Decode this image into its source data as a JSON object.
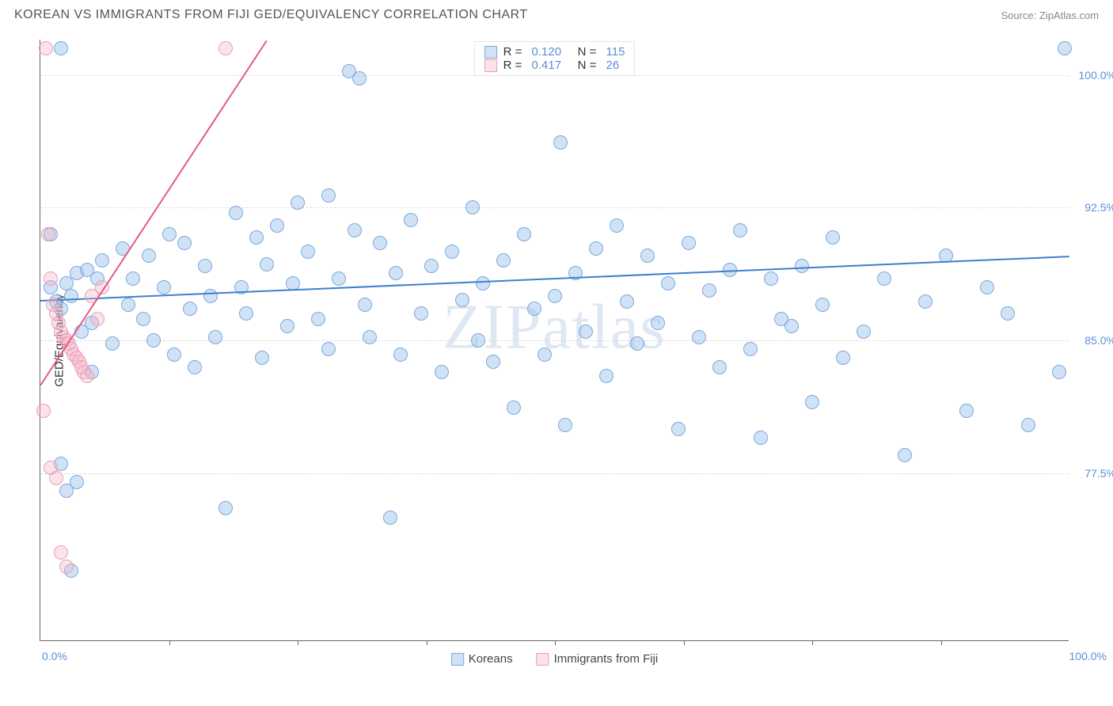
{
  "header": {
    "title": "KOREAN VS IMMIGRANTS FROM FIJI GED/EQUIVALENCY CORRELATION CHART",
    "source": "Source: ZipAtlas.com"
  },
  "watermark": "ZIPatlas",
  "chart": {
    "type": "scatter",
    "yaxis_title": "GED/Equivalency",
    "xlim": [
      0,
      100
    ],
    "ylim": [
      68,
      102
    ],
    "xaxis_left_label": "0.0%",
    "xaxis_right_label": "100.0%",
    "xtick_positions": [
      12.5,
      25,
      37.5,
      50,
      62.5,
      75,
      87.5
    ],
    "yticks": [
      {
        "value": 77.5,
        "label": "77.5%"
      },
      {
        "value": 85.0,
        "label": "85.0%"
      },
      {
        "value": 92.5,
        "label": "92.5%"
      },
      {
        "value": 100.0,
        "label": "100.0%"
      }
    ],
    "grid_color": "#dddddd",
    "background_color": "#ffffff",
    "marker_radius": 9,
    "series": [
      {
        "name": "Koreans",
        "color_fill": "rgba(150,190,235,0.45)",
        "color_border": "#7fa8d9",
        "R": "0.120",
        "N": "115",
        "regression": {
          "x1": 0,
          "y1": 87.3,
          "x2": 100,
          "y2": 89.8,
          "color": "#3f7fd0",
          "width": 2
        },
        "points": [
          [
            1,
            88
          ],
          [
            1.5,
            87.2
          ],
          [
            2,
            86.8
          ],
          [
            2.5,
            88.2
          ],
          [
            3,
            87.5
          ],
          [
            3.5,
            88.8
          ],
          [
            4,
            85.5
          ],
          [
            4.5,
            89
          ],
          [
            5,
            86
          ],
          [
            5.5,
            88.5
          ],
          [
            2,
            101.5
          ],
          [
            5,
            83.2
          ],
          [
            6,
            89.5
          ],
          [
            7,
            84.8
          ],
          [
            8,
            90.2
          ],
          [
            8.5,
            87
          ],
          [
            9,
            88.5
          ],
          [
            10,
            86.2
          ],
          [
            10.5,
            89.8
          ],
          [
            11,
            85
          ],
          [
            12,
            88
          ],
          [
            12.5,
            91
          ],
          [
            13,
            84.2
          ],
          [
            14,
            90.5
          ],
          [
            14.5,
            86.8
          ],
          [
            15,
            83.5
          ],
          [
            16,
            89.2
          ],
          [
            16.5,
            87.5
          ],
          [
            17,
            85.2
          ],
          [
            18,
            75.5
          ],
          [
            19,
            92.2
          ],
          [
            19.5,
            88
          ],
          [
            20,
            86.5
          ],
          [
            21,
            90.8
          ],
          [
            21.5,
            84
          ],
          [
            22,
            89.3
          ],
          [
            23,
            91.5
          ],
          [
            24,
            85.8
          ],
          [
            24.5,
            88.2
          ],
          [
            25,
            92.8
          ],
          [
            26,
            90
          ],
          [
            27,
            86.2
          ],
          [
            28,
            93.2
          ],
          [
            28,
            84.5
          ],
          [
            29,
            88.5
          ],
          [
            30,
            100.2
          ],
          [
            30.5,
            91.2
          ],
          [
            31,
            99.8
          ],
          [
            31.5,
            87
          ],
          [
            32,
            85.2
          ],
          [
            33,
            90.5
          ],
          [
            34,
            75
          ],
          [
            34.5,
            88.8
          ],
          [
            35,
            84.2
          ],
          [
            36,
            91.8
          ],
          [
            37,
            86.5
          ],
          [
            38,
            89.2
          ],
          [
            39,
            83.2
          ],
          [
            40,
            90
          ],
          [
            41,
            87.3
          ],
          [
            42,
            92.5
          ],
          [
            42.5,
            85
          ],
          [
            43,
            88.2
          ],
          [
            44,
            83.8
          ],
          [
            45,
            89.5
          ],
          [
            46,
            81.2
          ],
          [
            47,
            91
          ],
          [
            48,
            86.8
          ],
          [
            49,
            84.2
          ],
          [
            50,
            87.5
          ],
          [
            50.5,
            96.2
          ],
          [
            51,
            80.2
          ],
          [
            52,
            88.8
          ],
          [
            53,
            85.5
          ],
          [
            54,
            90.2
          ],
          [
            55,
            83
          ],
          [
            56,
            91.5
          ],
          [
            57,
            87.2
          ],
          [
            58,
            84.8
          ],
          [
            59,
            89.8
          ],
          [
            60,
            86
          ],
          [
            61,
            88.2
          ],
          [
            62,
            80
          ],
          [
            63,
            90.5
          ],
          [
            64,
            85.2
          ],
          [
            65,
            87.8
          ],
          [
            66,
            83.5
          ],
          [
            67,
            89
          ],
          [
            68,
            91.2
          ],
          [
            69,
            84.5
          ],
          [
            70,
            79.5
          ],
          [
            71,
            88.5
          ],
          [
            72,
            86.2
          ],
          [
            73,
            85.8
          ],
          [
            74,
            89.2
          ],
          [
            75,
            81.5
          ],
          [
            76,
            87
          ],
          [
            77,
            90.8
          ],
          [
            78,
            84
          ],
          [
            80,
            85.5
          ],
          [
            82,
            88.5
          ],
          [
            84,
            78.5
          ],
          [
            86,
            87.2
          ],
          [
            88,
            89.8
          ],
          [
            90,
            81
          ],
          [
            92,
            88
          ],
          [
            94,
            86.5
          ],
          [
            96,
            80.2
          ],
          [
            99.5,
            101.5
          ],
          [
            99,
            83.2
          ],
          [
            1,
            91
          ],
          [
            2,
            78
          ],
          [
            2.5,
            76.5
          ],
          [
            3,
            72
          ],
          [
            3.5,
            77
          ]
        ]
      },
      {
        "name": "Immigrants from Fiji",
        "color_fill": "rgba(245,175,195,0.35)",
        "color_border": "#e8a0b5",
        "R": "0.417",
        "N": "26",
        "regression": {
          "x1": 0,
          "y1": 82.5,
          "x2": 22,
          "y2": 102,
          "color": "#e55a85",
          "width": 2
        },
        "points": [
          [
            0.5,
            101.5
          ],
          [
            0.8,
            91
          ],
          [
            1,
            88.5
          ],
          [
            1.2,
            87
          ],
          [
            1.5,
            86.5
          ],
          [
            1.8,
            86
          ],
          [
            2,
            85.5
          ],
          [
            2.2,
            85.2
          ],
          [
            2.5,
            85
          ],
          [
            2.8,
            84.8
          ],
          [
            3,
            84.5
          ],
          [
            3.2,
            84.2
          ],
          [
            3.5,
            84
          ],
          [
            3.8,
            83.8
          ],
          [
            4,
            83.5
          ],
          [
            4.2,
            83.2
          ],
          [
            4.5,
            83
          ],
          [
            5,
            87.5
          ],
          [
            5.5,
            86.2
          ],
          [
            6,
            88
          ],
          [
            0.3,
            81
          ],
          [
            1,
            77.8
          ],
          [
            1.5,
            77.2
          ],
          [
            2,
            73
          ],
          [
            2.5,
            72.2
          ],
          [
            18,
            101.5
          ]
        ]
      }
    ],
    "top_legend": {
      "rows": [
        {
          "swatch": "blue",
          "R": "0.120",
          "N": "115"
        },
        {
          "swatch": "pink",
          "R": "0.417",
          "N": "26"
        }
      ]
    },
    "bottom_legend": [
      {
        "swatch": "blue",
        "label": "Koreans"
      },
      {
        "swatch": "pink",
        "label": "Immigrants from Fiji"
      }
    ]
  }
}
